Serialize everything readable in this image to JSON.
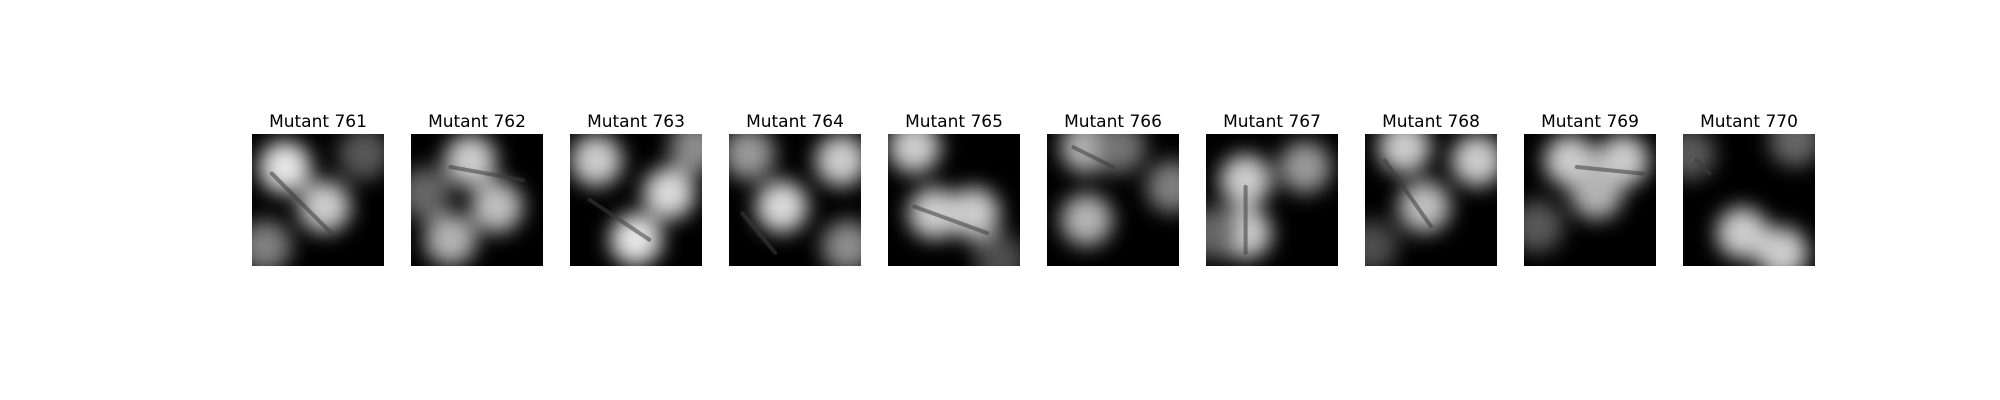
{
  "figure": {
    "panels": [
      {
        "title": "Mutant 761",
        "blobs": [
          [
            0.25,
            0.25,
            0.9
          ],
          [
            0.55,
            0.55,
            0.8
          ],
          [
            0.1,
            0.85,
            0.5
          ],
          [
            0.85,
            0.15,
            0.35
          ]
        ],
        "stroke": [
          [
            0.15,
            0.3
          ],
          [
            0.6,
            0.75
          ]
        ]
      },
      {
        "title": "Mutant 762",
        "blobs": [
          [
            0.45,
            0.2,
            0.8
          ],
          [
            0.3,
            0.8,
            0.7
          ],
          [
            0.65,
            0.55,
            0.75
          ],
          [
            0.1,
            0.45,
            0.4
          ]
        ],
        "stroke": [
          [
            0.3,
            0.25
          ],
          [
            0.85,
            0.35
          ]
        ]
      },
      {
        "title": "Mutant 763",
        "blobs": [
          [
            0.2,
            0.2,
            0.8
          ],
          [
            0.5,
            0.8,
            0.9
          ],
          [
            0.75,
            0.45,
            0.85
          ],
          [
            0.95,
            0.1,
            0.55
          ]
        ],
        "stroke": [
          [
            0.15,
            0.5
          ],
          [
            0.6,
            0.8
          ]
        ]
      },
      {
        "title": "Mutant 764",
        "blobs": [
          [
            0.15,
            0.15,
            0.6
          ],
          [
            0.4,
            0.55,
            0.85
          ],
          [
            0.85,
            0.2,
            0.8
          ],
          [
            0.9,
            0.85,
            0.55
          ]
        ],
        "stroke": [
          [
            0.1,
            0.6
          ],
          [
            0.35,
            0.9
          ]
        ]
      },
      {
        "title": "Mutant 765",
        "blobs": [
          [
            0.2,
            0.1,
            0.8
          ],
          [
            0.35,
            0.6,
            0.8
          ],
          [
            0.65,
            0.6,
            0.8
          ],
          [
            0.85,
            0.95,
            0.3
          ]
        ],
        "stroke": [
          [
            0.2,
            0.55
          ],
          [
            0.75,
            0.75
          ]
        ]
      },
      {
        "title": "Mutant 766",
        "blobs": [
          [
            0.3,
            0.1,
            0.7
          ],
          [
            0.3,
            0.65,
            0.7
          ],
          [
            0.95,
            0.4,
            0.5
          ],
          [
            0.55,
            0.1,
            0.45
          ]
        ],
        "stroke": [
          [
            0.2,
            0.1
          ],
          [
            0.5,
            0.25
          ]
        ]
      },
      {
        "title": "Mutant 767",
        "blobs": [
          [
            0.3,
            0.35,
            0.8
          ],
          [
            0.3,
            0.75,
            0.8
          ],
          [
            0.75,
            0.25,
            0.6
          ],
          [
            0.05,
            0.75,
            0.4
          ]
        ],
        "stroke": [
          [
            0.3,
            0.4
          ],
          [
            0.3,
            0.9
          ]
        ]
      },
      {
        "title": "Mutant 768",
        "blobs": [
          [
            0.3,
            0.1,
            0.8
          ],
          [
            0.45,
            0.55,
            0.75
          ],
          [
            0.85,
            0.2,
            0.8
          ],
          [
            0.05,
            0.85,
            0.3
          ]
        ],
        "stroke": [
          [
            0.15,
            0.2
          ],
          [
            0.5,
            0.7
          ]
        ]
      },
      {
        "title": "Mutant 769",
        "blobs": [
          [
            0.35,
            0.2,
            0.8
          ],
          [
            0.75,
            0.2,
            0.8
          ],
          [
            0.55,
            0.45,
            0.7
          ],
          [
            0.1,
            0.7,
            0.35
          ]
        ],
        "stroke": [
          [
            0.4,
            0.25
          ],
          [
            0.9,
            0.3
          ]
        ]
      },
      {
        "title": "Mutant 770",
        "blobs": [
          [
            0.45,
            0.75,
            0.8
          ],
          [
            0.75,
            0.9,
            0.8
          ],
          [
            0.05,
            0.15,
            0.35
          ],
          [
            0.85,
            0.05,
            0.4
          ]
        ],
        "stroke": [
          [
            0.1,
            0.2
          ],
          [
            0.2,
            0.3
          ]
        ]
      }
    ]
  }
}
